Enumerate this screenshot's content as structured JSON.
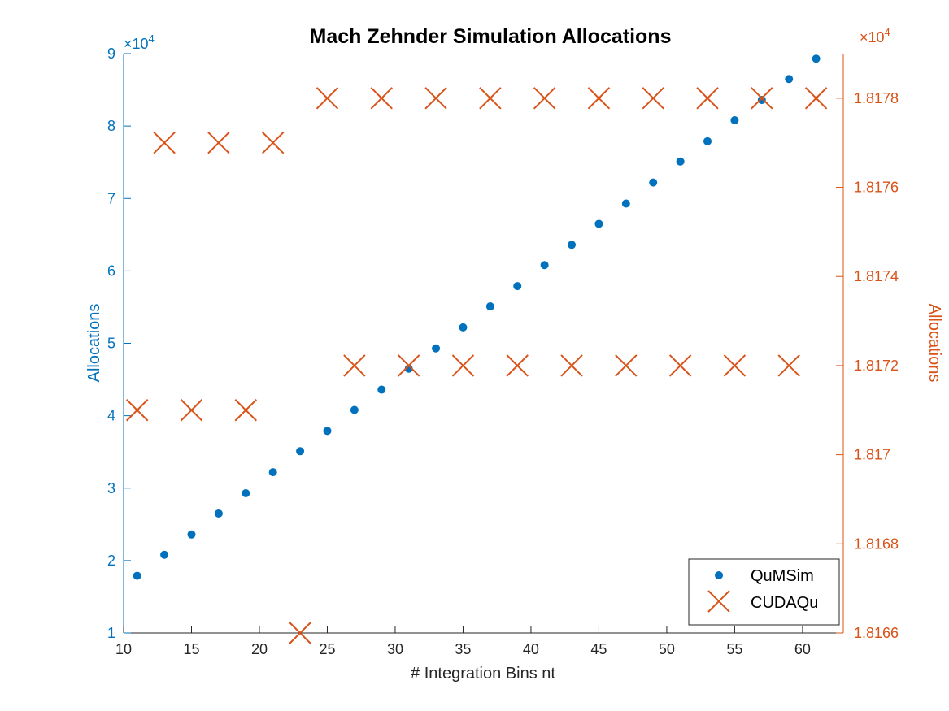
{
  "chart_data": {
    "type": "scatter",
    "title": "Mach Zehnder Simulation Allocations",
    "xlabel": "# Integration Bins nt",
    "xlim": [
      10,
      63
    ],
    "xticks": [
      10,
      15,
      20,
      25,
      30,
      35,
      40,
      45,
      50,
      55,
      60
    ],
    "left_axis": {
      "label": "Allocations",
      "color": "#0072BD",
      "lim": [
        10000,
        90000
      ],
      "ticks": [
        1,
        2,
        3,
        4,
        5,
        6,
        7,
        8,
        9
      ],
      "multiplier": "×10",
      "exponent": "4"
    },
    "right_axis": {
      "label": "Allocations",
      "color": "#D95319",
      "lim": [
        18166,
        18179
      ],
      "ticks": [
        1.8166,
        1.8168,
        1.817,
        1.8172,
        1.8174,
        1.8176,
        1.8178
      ],
      "multiplier": "×10",
      "exponent": "4"
    },
    "legend_position": "bottom-right",
    "grid": false,
    "series": [
      {
        "name": "QuMSim",
        "axis": "left",
        "marker": "dot",
        "color": "#0072BD",
        "x": [
          11,
          13,
          15,
          17,
          19,
          21,
          23,
          25,
          27,
          29,
          31,
          33,
          35,
          37,
          39,
          41,
          43,
          45,
          47,
          49,
          51,
          53,
          55,
          57,
          59,
          61
        ],
        "y": [
          17900,
          20800,
          23600,
          26500,
          29300,
          32200,
          35100,
          37900,
          40800,
          43600,
          46500,
          49300,
          52200,
          55100,
          57900,
          60800,
          63600,
          66500,
          69300,
          72200,
          75100,
          77900,
          80800,
          83600,
          86500,
          89300
        ]
      },
      {
        "name": "CUDAQu",
        "axis": "right",
        "marker": "x",
        "color": "#D95319",
        "x": [
          11,
          13,
          15,
          17,
          19,
          21,
          23,
          25,
          27,
          29,
          31,
          33,
          35,
          37,
          39,
          41,
          43,
          45,
          47,
          49,
          51,
          53,
          55,
          57,
          59,
          61
        ],
        "y": [
          18171,
          18177,
          18171,
          18177,
          18171,
          18177,
          18166,
          18178,
          18172,
          18178,
          18172,
          18178,
          18172,
          18178,
          18172,
          18178,
          18172,
          18178,
          18172,
          18178,
          18172,
          18178,
          18172,
          18178,
          18172,
          18178
        ]
      }
    ]
  }
}
